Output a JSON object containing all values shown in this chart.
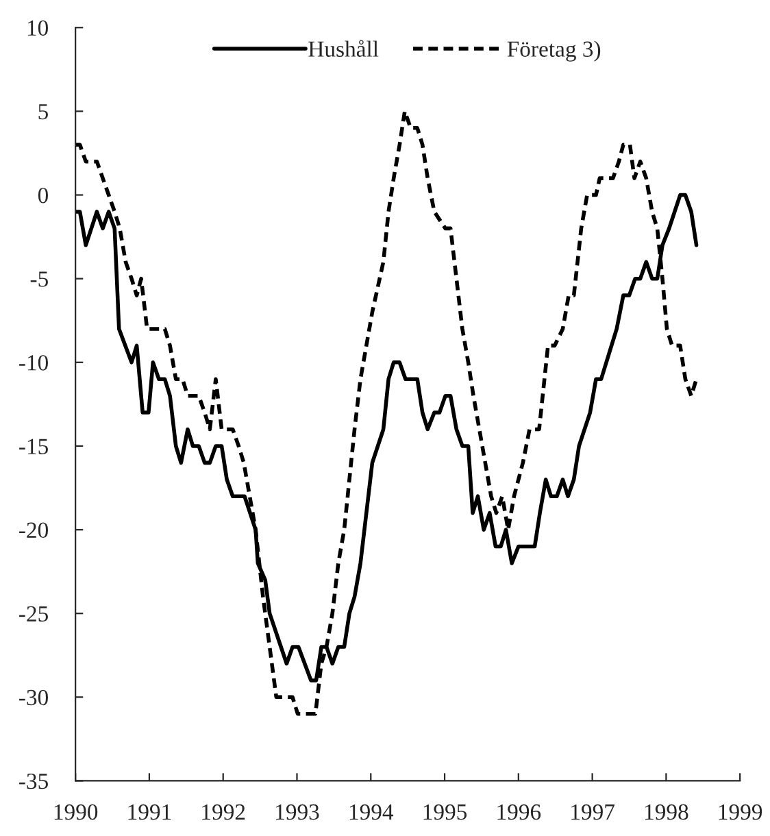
{
  "chart_data": {
    "type": "line",
    "series": [
      {
        "name": "Hushåll",
        "color": "#000000",
        "line_style": "solid",
        "x": [
          1990.0,
          1990.06,
          1990.14,
          1990.29,
          1990.37,
          1990.45,
          1990.53,
          1990.59,
          1990.76,
          1990.83,
          1990.91,
          1990.99,
          1991.05,
          1991.13,
          1991.21,
          1991.28,
          1991.36,
          1991.43,
          1991.52,
          1991.59,
          1991.67,
          1991.75,
          1991.82,
          1991.9,
          1991.98,
          1992.05,
          1992.13,
          1992.29,
          1992.44,
          1992.47,
          1992.57,
          1992.63,
          1992.86,
          1992.94,
          1993.02,
          1993.19,
          1993.26,
          1993.33,
          1993.4,
          1993.48,
          1993.56,
          1993.64,
          1993.71,
          1993.78,
          1993.86,
          1993.94,
          1994.02,
          1994.17,
          1994.24,
          1994.31,
          1994.39,
          1994.47,
          1994.63,
          1994.7,
          1994.77,
          1994.86,
          1994.93,
          1995.01,
          1995.08,
          1995.16,
          1995.24,
          1995.32,
          1995.38,
          1995.45,
          1995.53,
          1995.61,
          1995.69,
          1995.76,
          1995.83,
          1995.91,
          1996.0,
          1996.22,
          1996.29,
          1996.37,
          1996.44,
          1996.52,
          1996.6,
          1996.67,
          1996.75,
          1996.82,
          1996.97,
          1997.05,
          1997.12,
          1997.33,
          1997.42,
          1997.5,
          1997.58,
          1997.65,
          1997.73,
          1997.81,
          1997.88,
          1997.95,
          1998.04,
          1998.19,
          1998.26,
          1998.34,
          1998.41
        ],
        "values": [
          -1,
          -1,
          -3,
          -1,
          -2,
          -1,
          -2,
          -8,
          -10,
          -9,
          -13,
          -13,
          -10,
          -11,
          -11,
          -12,
          -15,
          -16,
          -14,
          -15,
          -15,
          -16,
          -16,
          -15,
          -15,
          -17,
          -18,
          -18,
          -20,
          -22,
          -23,
          -25,
          -28,
          -27,
          -27,
          -29,
          -29,
          -27,
          -27,
          -28,
          -27,
          -27,
          -25,
          -24,
          -22,
          -19,
          -16,
          -14,
          -11,
          -10,
          -10,
          -11,
          -11,
          -13,
          -14,
          -13,
          -13,
          -12,
          -12,
          -14,
          -15,
          -15,
          -19,
          -18,
          -20,
          -19,
          -21,
          -21,
          -20,
          -22,
          -21,
          -21,
          -19,
          -17,
          -18,
          -18,
          -17,
          -18,
          -17,
          -15,
          -13,
          -11,
          -11,
          -8,
          -6,
          -6,
          -5,
          -5,
          -4,
          -5,
          -5,
          -3,
          -2,
          0,
          0,
          -1,
          -3
        ]
      },
      {
        "name": "Företag 3)",
        "color": "#000000",
        "line_style": "dashed",
        "x": [
          1990.0,
          1990.06,
          1990.14,
          1990.29,
          1990.37,
          1990.45,
          1990.53,
          1990.6,
          1990.68,
          1990.76,
          1990.83,
          1990.89,
          1990.97,
          1991.05,
          1991.21,
          1991.28,
          1991.36,
          1991.45,
          1991.52,
          1991.67,
          1991.75,
          1991.82,
          1991.9,
          1991.98,
          1992.13,
          1992.21,
          1992.28,
          1992.36,
          1992.44,
          1992.54,
          1992.63,
          1992.72,
          1992.94,
          1993.01,
          1993.25,
          1993.33,
          1993.4,
          1993.48,
          1993.56,
          1993.64,
          1993.71,
          1993.78,
          1993.86,
          1993.94,
          1994.02,
          1994.17,
          1994.24,
          1994.31,
          1994.39,
          1994.46,
          1994.54,
          1994.63,
          1994.7,
          1994.77,
          1994.86,
          1995.01,
          1995.08,
          1995.16,
          1995.24,
          1995.32,
          1995.39,
          1995.47,
          1995.55,
          1995.63,
          1995.7,
          1995.78,
          1995.86,
          1995.94,
          1996.06,
          1996.15,
          1996.28,
          1996.4,
          1996.49,
          1996.6,
          1996.68,
          1996.75,
          1996.8,
          1996.85,
          1996.93,
          1997.05,
          1997.1,
          1997.28,
          1997.36,
          1997.42,
          1997.51,
          1997.57,
          1997.65,
          1997.73,
          1997.81,
          1997.88,
          1997.95,
          1998.01,
          1998.08,
          1998.19,
          1998.26,
          1998.34,
          1998.41
        ],
        "values": [
          3,
          3,
          2,
          2,
          1,
          0,
          -1,
          -2,
          -4,
          -5,
          -6,
          -5,
          -8,
          -8,
          -8,
          -9,
          -11,
          -11,
          -12,
          -12,
          -13,
          -14,
          -11,
          -14,
          -14,
          -15,
          -16,
          -18,
          -20,
          -24,
          -27,
          -30,
          -30,
          -31,
          -31,
          -28,
          -27,
          -25,
          -22,
          -20,
          -17,
          -14,
          -11,
          -9,
          -7,
          -4,
          -1,
          1,
          3,
          5,
          4,
          4,
          3,
          1,
          -1,
          -2,
          -2,
          -5,
          -8,
          -10,
          -12,
          -14,
          -16,
          -18,
          -19,
          -18,
          -20,
          -18,
          -16,
          -14,
          -14,
          -9,
          -9,
          -8,
          -6,
          -6,
          -4,
          -2,
          0,
          0,
          1,
          1,
          2,
          3,
          3,
          1,
          2,
          1,
          -1,
          -2,
          -5,
          -8,
          -9,
          -9,
          -11,
          -12,
          -11
        ]
      }
    ],
    "xlim": [
      1990,
      1999
    ],
    "xticks": [
      1990,
      1991,
      1992,
      1993,
      1994,
      1995,
      1996,
      1997,
      1998,
      1999
    ],
    "ylim": [
      -35,
      10
    ],
    "yticks": [
      -35,
      -30,
      -25,
      -20,
      -15,
      -10,
      -5,
      0,
      5,
      10
    ],
    "grid": false,
    "legend": "top",
    "marker": "none"
  }
}
